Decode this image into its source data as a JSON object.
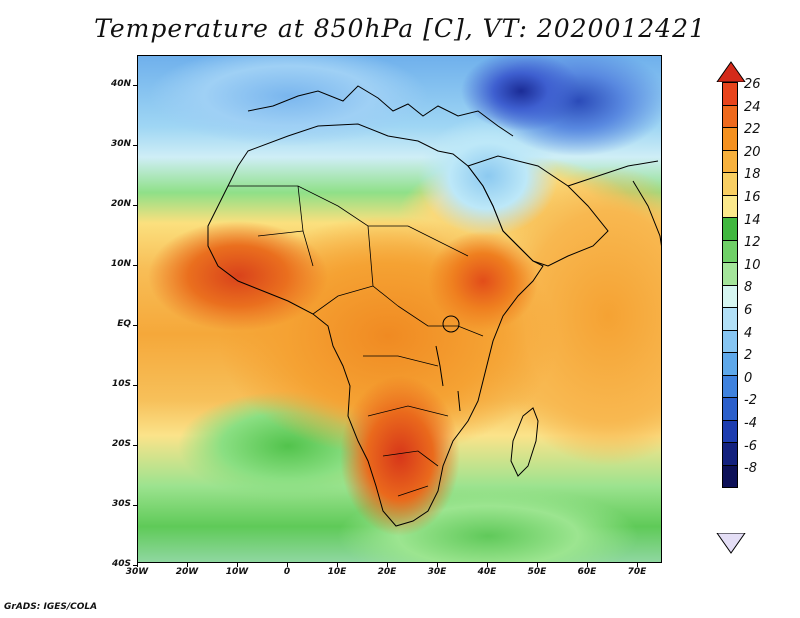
{
  "title": "Temperature at 850hPa [C], VT: 2020012421",
  "footer": "GrADS: IGES/COLA",
  "y_axis": {
    "labels": [
      "40N",
      "30N",
      "20N",
      "10N",
      "EQ",
      "10S",
      "20S",
      "30S",
      "40S"
    ]
  },
  "x_axis": {
    "labels": [
      "30W",
      "20W",
      "10W",
      "0",
      "10E",
      "20E",
      "30E",
      "40E",
      "50E",
      "60E",
      "70E"
    ]
  },
  "colorbar": {
    "labels": [
      "26",
      "24",
      "22",
      "20",
      "18",
      "16",
      "14",
      "12",
      "10",
      "8",
      "6",
      "4",
      "2",
      "0",
      "-2",
      "-4",
      "-6",
      "-8"
    ],
    "colors": [
      "#d42a1a",
      "#e8441c",
      "#ef6a1d",
      "#f5911f",
      "#f7b13d",
      "#f9cf63",
      "#fbe98c",
      "#40b83f",
      "#6fd067",
      "#a4e59a",
      "#d6f6f1",
      "#b2e0f7",
      "#86c5f2",
      "#5ea8ea",
      "#3f82de",
      "#2b5fcb",
      "#1d3db0",
      "#13217e",
      "#0d1158",
      "#e4def6"
    ],
    "top_arrow_color": "#d42a1a",
    "bottom_arrow_color": "#e4def6"
  },
  "map": {
    "region": "Africa",
    "lon_range": [
      -30,
      75
    ],
    "lat_range": [
      -40,
      45
    ],
    "field": "850 hPa temperature (C)"
  }
}
